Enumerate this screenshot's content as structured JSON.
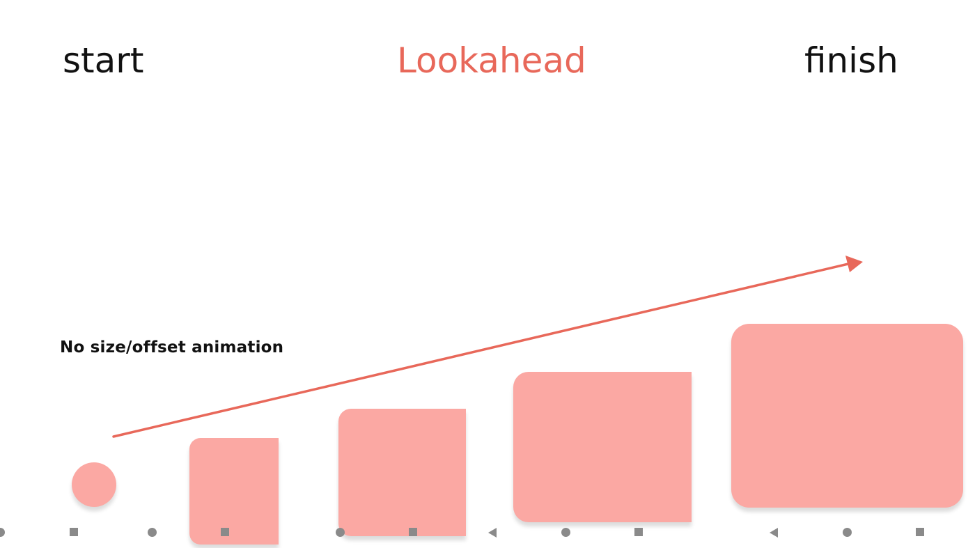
{
  "labels": {
    "start": "start",
    "title": "Lookahead",
    "finish": "finish",
    "note": "No size/offset animation"
  },
  "colors": {
    "title_accent": "#e8685a",
    "shape_fill": "#fba8a3",
    "arrow": "#e8685a",
    "nav_icons": "#8a8a8a"
  },
  "shapes": [
    {
      "name": "circle-frame",
      "form": "circle"
    },
    {
      "name": "rounded-rect-frame-2",
      "form": "rounded-rect"
    },
    {
      "name": "rounded-rect-frame-3",
      "form": "rounded-rect"
    },
    {
      "name": "rounded-rect-frame-4",
      "form": "rounded-rect"
    },
    {
      "name": "rounded-rect-frame-5",
      "form": "rounded-rect"
    }
  ],
  "nav_icons": [
    "home-icon",
    "recents-icon",
    "back-icon"
  ]
}
